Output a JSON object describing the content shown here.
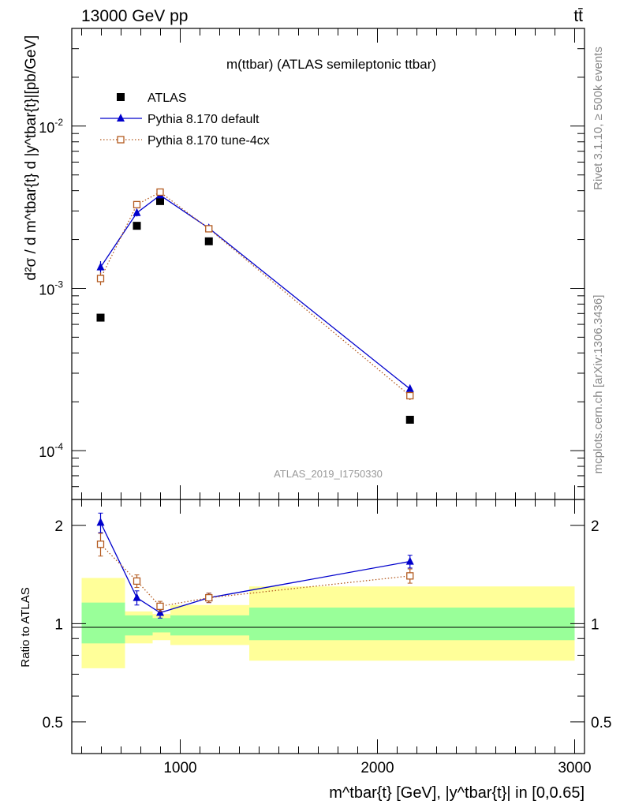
{
  "header": {
    "energy_label": "13000 GeV pp",
    "process_label": "tt̄"
  },
  "side": {
    "rivet_label": "Rivet 3.1.10, ≥ 500k events",
    "mcplots_label": "mcplots.cern.ch [arXiv:1306.3436]"
  },
  "chart_data": [
    {
      "type": "scatter",
      "panel": "main",
      "title": "m(ttbar) (ATLAS semileptonic ttbar)",
      "watermark": "ATLAS_2019_I1750330",
      "ylabel": "d²σ / d m^tbar{t} d |y^tbar{t}|[pb/GeV]",
      "yscale": "log",
      "ylim": [
        5e-05,
        0.04
      ],
      "xlim": [
        450,
        3050
      ],
      "ytick_labels": [
        "10^-4",
        "10^-3",
        "10^-2"
      ],
      "legend": [
        "ATLAS",
        "Pythia 8.170 default",
        "Pythia 8.170 tune-4cx"
      ],
      "legend_position": "top-left",
      "x": [
        596,
        780,
        898,
        1145,
        2165
      ],
      "series": [
        {
          "name": "ATLAS",
          "marker": "filled-square",
          "color": "#000000",
          "values": [
            0.00066,
            0.00243,
            0.00345,
            0.00195,
            0.000155
          ]
        },
        {
          "name": "Pythia 8.170 default",
          "marker": "filled-triangle",
          "line": "solid",
          "color": "#0000cc",
          "values": [
            0.00135,
            0.00292,
            0.00375,
            0.00235,
            0.00024
          ],
          "err": [
            0.09,
            0.05,
            0.04,
            0.04,
            0.06
          ]
        },
        {
          "name": "Pythia 8.170 tune-4cx",
          "marker": "open-square",
          "line": "dotted",
          "color": "#b35a1f",
          "values": [
            0.00115,
            0.00328,
            0.00392,
            0.00233,
            0.000218
          ],
          "err": [
            0.09,
            0.05,
            0.04,
            0.04,
            0.06
          ]
        }
      ]
    },
    {
      "type": "scatter",
      "panel": "ratio",
      "xlabel": "m^tbar{t} [GeV], |y^tbar{t}| in [0,0.65]",
      "ylabel": "Ratio to ATLAS",
      "yscale": "log",
      "ylim": [
        0.4,
        2.4
      ],
      "xlim": [
        450,
        3050
      ],
      "ytick_labels": [
        "0.5",
        "1",
        "2"
      ],
      "xtick_labels": [
        "1000",
        "2000",
        "3000"
      ],
      "x": [
        596,
        780,
        898,
        1145,
        2165
      ],
      "bins": [
        {
          "lo": 500,
          "hi": 720,
          "yellow": [
            0.73,
            1.38
          ],
          "green": [
            0.87,
            1.16
          ]
        },
        {
          "lo": 720,
          "hi": 860,
          "yellow": [
            0.87,
            1.09
          ],
          "green": [
            0.92,
            1.06
          ]
        },
        {
          "lo": 860,
          "hi": 950,
          "yellow": [
            0.89,
            1.07
          ],
          "green": [
            0.94,
            1.04
          ]
        },
        {
          "lo": 950,
          "hi": 1350,
          "yellow": [
            0.86,
            1.14
          ],
          "green": [
            0.92,
            1.06
          ]
        },
        {
          "lo": 1350,
          "hi": 3000,
          "yellow": [
            0.77,
            1.3
          ],
          "green": [
            0.89,
            1.12
          ]
        }
      ],
      "series": [
        {
          "name": "Pythia 8.170 default",
          "color": "#0000cc",
          "values": [
            2.04,
            1.2,
            1.08,
            1.2,
            1.55
          ],
          "err": [
            0.14,
            0.06,
            0.04,
            0.04,
            0.07
          ]
        },
        {
          "name": "Pythia 8.170 tune-4cx",
          "color": "#b35a1f",
          "values": [
            1.75,
            1.35,
            1.13,
            1.2,
            1.4
          ],
          "err": [
            0.14,
            0.06,
            0.04,
            0.04,
            0.07
          ]
        }
      ]
    }
  ]
}
